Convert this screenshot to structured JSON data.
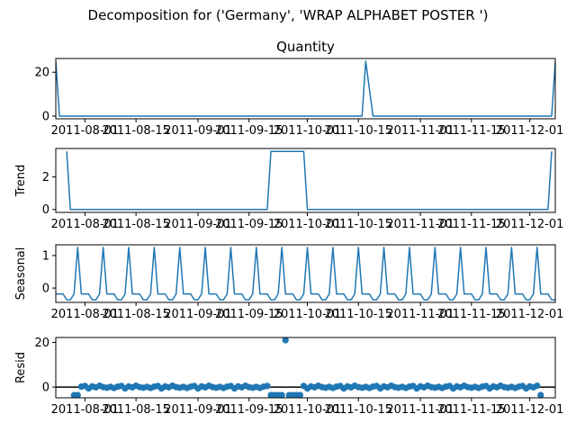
{
  "figure": {
    "suptitle": "Decomposition for ('Germany', 'WRAP ALPHABET POSTER  ')"
  },
  "colors": {
    "line": "#1f77b4",
    "axis": "#000000"
  },
  "chart_data": [
    {
      "type": "line",
      "title": "Quantity",
      "ylabel": "",
      "x_start": "2011-07-24",
      "x": [
        "2011-07-24",
        "2011-07-25",
        "2011-07-27",
        "2011-10-16",
        "2011-10-17",
        "2011-10-19",
        "2011-12-07",
        "2011-12-08"
      ],
      "values": [
        25,
        0,
        0,
        0,
        25,
        0,
        0,
        25
      ],
      "xlim": [
        "2011-07-24",
        "2011-12-08"
      ],
      "ylim": [
        -1.25,
        26.25
      ],
      "yticks": [
        0,
        20
      ],
      "xticks": [
        "2011-08-01",
        "2011-08-15",
        "2011-09-01",
        "2011-09-15",
        "2011-10-01",
        "2011-10-15",
        "2011-11-01",
        "2011-11-15",
        "2011-12-01"
      ],
      "grid": false
    },
    {
      "type": "line",
      "title": "",
      "ylabel": "Trend",
      "x": [
        "2011-07-27",
        "2011-07-28",
        "2011-09-20",
        "2011-09-21",
        "2011-09-30",
        "2011-10-01",
        "2011-12-06",
        "2011-12-07"
      ],
      "values": [
        3.57,
        0,
        0,
        3.57,
        3.57,
        0,
        0,
        3.57
      ],
      "xlim": [
        "2011-07-24",
        "2011-12-08"
      ],
      "ylim": [
        -0.18,
        3.75
      ],
      "yticks": [
        0,
        2
      ],
      "xticks": [
        "2011-08-01",
        "2011-08-15",
        "2011-09-01",
        "2011-09-15",
        "2011-10-01",
        "2011-10-15",
        "2011-11-01",
        "2011-11-15",
        "2011-12-01"
      ],
      "grid": false
    },
    {
      "type": "line",
      "title": "",
      "ylabel": "Seasonal",
      "period_pattern": [
        -0.18,
        -0.18,
        -0.18,
        -0.36,
        -0.36,
        -0.18,
        1.25
      ],
      "pattern_start": "2011-07-24",
      "x_end": "2011-12-08",
      "xlim": [
        "2011-07-24",
        "2011-12-08"
      ],
      "ylim": [
        -0.44,
        1.33
      ],
      "yticks": [
        0,
        1
      ],
      "xticks": [
        "2011-08-01",
        "2011-08-15",
        "2011-09-01",
        "2011-09-15",
        "2011-10-01",
        "2011-10-15",
        "2011-11-01",
        "2011-11-15",
        "2011-12-01"
      ],
      "grid": false
    },
    {
      "type": "scatter",
      "title": "",
      "ylabel": "Resid",
      "base_pattern": [
        0.1,
        -0.4,
        0.2,
        0.5,
        -0.6,
        0.3,
        -0.1,
        0.6,
        0.0,
        -0.3
      ],
      "special_points": [
        {
          "x": "2011-07-29",
          "y": -3.6
        },
        {
          "x": "2011-07-30",
          "y": -3.6
        },
        {
          "x": "2011-09-21",
          "y": -3.6
        },
        {
          "x": "2011-09-22",
          "y": -3.6
        },
        {
          "x": "2011-09-23",
          "y": -3.6
        },
        {
          "x": "2011-09-24",
          "y": -3.6
        },
        {
          "x": "2011-09-25",
          "y": 21.0
        },
        {
          "x": "2011-09-26",
          "y": -3.6
        },
        {
          "x": "2011-09-27",
          "y": -3.6
        },
        {
          "x": "2011-09-28",
          "y": -3.6
        },
        {
          "x": "2011-09-29",
          "y": -3.6
        },
        {
          "x": "2011-12-04",
          "y": -3.6
        }
      ],
      "x_first": "2011-07-29",
      "x_last": "2011-12-04",
      "hline": 0,
      "xlim": [
        "2011-07-24",
        "2011-12-08"
      ],
      "ylim": [
        -4.8,
        22.2
      ],
      "yticks": [
        0,
        20
      ],
      "xticks": [
        "2011-08-01",
        "2011-08-15",
        "2011-09-01",
        "2011-09-15",
        "2011-10-01",
        "2011-10-15",
        "2011-11-01",
        "2011-11-15",
        "2011-12-01"
      ],
      "grid": false
    }
  ]
}
